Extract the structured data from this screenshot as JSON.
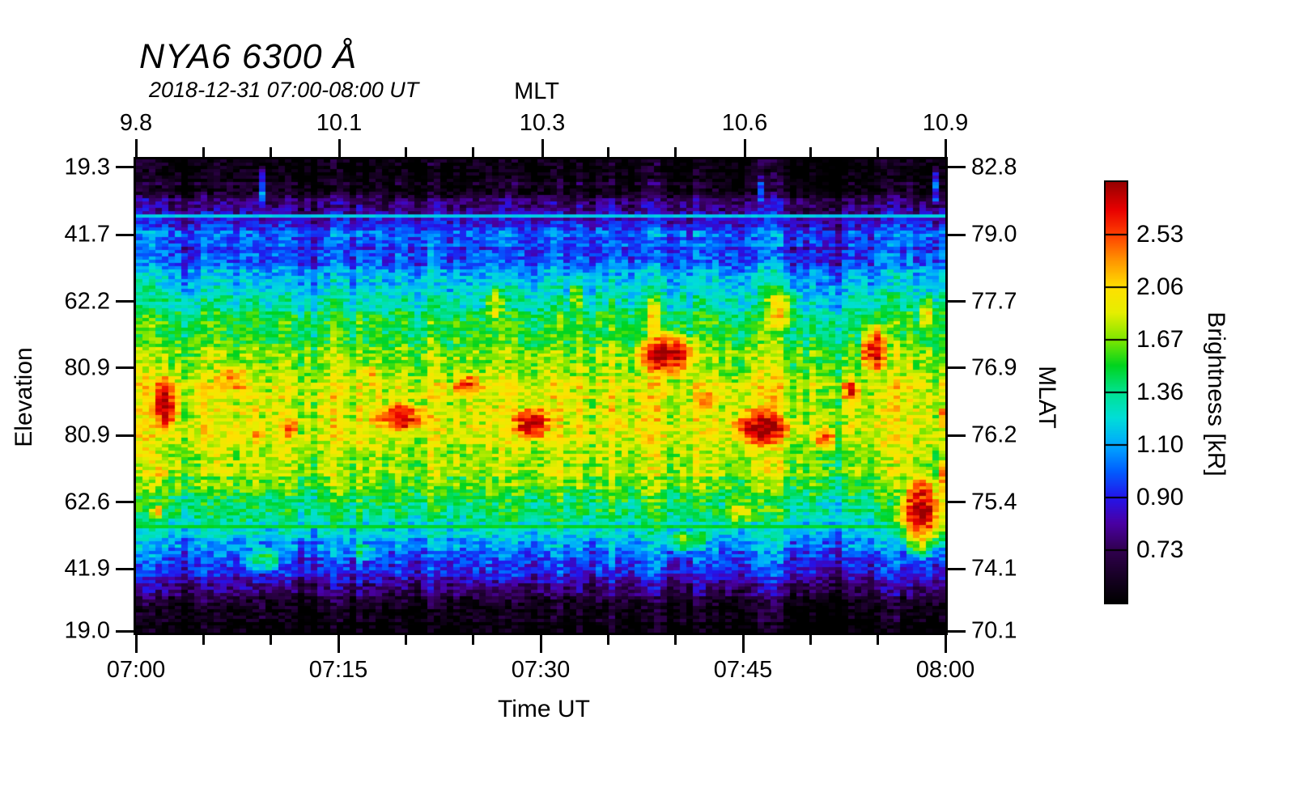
{
  "chart_data": {
    "type": "heatmap",
    "title": "NYA6 6300 Å",
    "subtitle": "2018-12-31 07:00-08:00 UT",
    "axes": {
      "top": {
        "label": "MLT",
        "ticks": [
          {
            "pos": 0.0,
            "label": "9.8"
          },
          {
            "pos": 0.251,
            "label": "10.1"
          },
          {
            "pos": 0.502,
            "label": "10.3"
          },
          {
            "pos": 0.752,
            "label": "10.6"
          },
          {
            "pos": 1.0,
            "label": "10.9"
          }
        ],
        "minor_divisions": 12
      },
      "bottom": {
        "label": "Time UT",
        "ticks": [
          {
            "pos": 0.0,
            "label": "07:00"
          },
          {
            "pos": 0.25,
            "label": "07:15"
          },
          {
            "pos": 0.5,
            "label": "07:30"
          },
          {
            "pos": 0.75,
            "label": "07:45"
          },
          {
            "pos": 1.0,
            "label": "08:00"
          }
        ],
        "minor_divisions": 12
      },
      "left": {
        "label": "Elevation",
        "ticks": [
          {
            "pos": 0.017,
            "label": "19.3"
          },
          {
            "pos": 0.159,
            "label": "41.7"
          },
          {
            "pos": 0.3,
            "label": "62.2"
          },
          {
            "pos": 0.441,
            "label": "80.9"
          },
          {
            "pos": 0.583,
            "label": "80.9"
          },
          {
            "pos": 0.724,
            "label": "62.6"
          },
          {
            "pos": 0.865,
            "label": "41.9"
          },
          {
            "pos": 0.997,
            "label": "19.0"
          }
        ]
      },
      "right": {
        "label": "MLAT",
        "ticks": [
          {
            "pos": 0.017,
            "label": "82.8"
          },
          {
            "pos": 0.159,
            "label": "79.0"
          },
          {
            "pos": 0.3,
            "label": "77.7"
          },
          {
            "pos": 0.441,
            "label": "76.9"
          },
          {
            "pos": 0.583,
            "label": "76.2"
          },
          {
            "pos": 0.724,
            "label": "75.4"
          },
          {
            "pos": 0.865,
            "label": "74.1"
          },
          {
            "pos": 0.997,
            "label": "70.1"
          }
        ]
      }
    },
    "colorbar": {
      "label": "Brightness [kR]",
      "segments": 8,
      "scale": "log",
      "vmin": 0.594,
      "vmax": 3.11,
      "boundary_labels": [
        "2.53",
        "2.06",
        "1.67",
        "1.36",
        "1.10",
        "0.90",
        "0.73"
      ]
    },
    "colormap": [
      [
        0.0,
        "#000000"
      ],
      [
        0.055,
        "#140020"
      ],
      [
        0.125,
        "#30004e"
      ],
      [
        0.19,
        "#4a00a4"
      ],
      [
        0.25,
        "#2414ea"
      ],
      [
        0.315,
        "#0060ff"
      ],
      [
        0.375,
        "#00a8ff"
      ],
      [
        0.44,
        "#00ded8"
      ],
      [
        0.5,
        "#00e292"
      ],
      [
        0.565,
        "#00d41e"
      ],
      [
        0.625,
        "#7ce600"
      ],
      [
        0.69,
        "#e6ee00"
      ],
      [
        0.75,
        "#ffe000"
      ],
      [
        0.815,
        "#ff9400"
      ],
      [
        0.875,
        "#ff4000"
      ],
      [
        0.935,
        "#e80000"
      ],
      [
        1.0,
        "#970000"
      ]
    ],
    "heatmap": {
      "cols": 40,
      "rows": 24,
      "base_profile": [
        0.62,
        0.66,
        0.82,
        1.0,
        0.97,
        1.08,
        1.22,
        1.38,
        1.52,
        1.66,
        1.8,
        1.88,
        1.9,
        1.86,
        1.82,
        1.76,
        1.62,
        1.45,
        1.3,
        1.12,
        0.95,
        0.8,
        0.66,
        0.6
      ],
      "column_gain": [
        1.04,
        0.98,
        0.95,
        1.03,
        0.99,
        1.06,
        0.96,
        1.01,
        0.92,
        1.04,
        0.97,
        1.05,
        1.0,
        0.94,
        1.03,
        0.98,
        1.05,
        0.96,
        1.02,
        0.91,
        1.03,
        1.0,
        0.96,
        1.04,
        0.97,
        1.05,
        0.93,
        1.01,
        1.04,
        0.97,
        1.02,
        1.05,
        0.9,
        0.92,
        0.88,
        0.96,
        0.98,
        1.04,
        0.94,
        1.0
      ],
      "features": [
        {
          "c": 0.8,
          "r": 11.8,
          "rc": 0.95,
          "rr": 2.0,
          "a": 2.95
        },
        {
          "c": 0.5,
          "r": 15.4,
          "rc": 0.6,
          "rr": 0.8,
          "a": 2.15
        },
        {
          "c": 0.4,
          "r": 17.3,
          "rc": 0.5,
          "rr": 0.7,
          "a": 2.05
        },
        {
          "c": 4.2,
          "r": 10.6,
          "rc": 1.8,
          "rr": 1.5,
          "a": 2.35
        },
        {
          "c": 5.3,
          "r": 13.5,
          "rc": 0.8,
          "rr": 1.1,
          "a": 2.25
        },
        {
          "c": 7.0,
          "r": 13.0,
          "rc": 0.7,
          "rr": 1.2,
          "a": 2.5
        },
        {
          "c": 12.4,
          "r": 12.5,
          "rc": 2.5,
          "rr": 1.2,
          "a": 2.78
        },
        {
          "c": 11.0,
          "r": 10.4,
          "rc": 0.8,
          "rr": 1.0,
          "a": 2.4
        },
        {
          "c": 15.8,
          "r": 10.9,
          "rc": 1.3,
          "rr": 1.1,
          "a": 2.65
        },
        {
          "c": 18.9,
          "r": 12.8,
          "rc": 1.5,
          "rr": 1.2,
          "a": 2.85
        },
        {
          "c": 23.2,
          "r": 12.7,
          "rc": 0.5,
          "rr": 0.7,
          "a": 2.45
        },
        {
          "c": 25.6,
          "r": 9.4,
          "rc": 2.0,
          "rr": 1.6,
          "a": 2.95
        },
        {
          "c": 27.6,
          "r": 11.6,
          "rc": 0.9,
          "rr": 0.9,
          "a": 2.5
        },
        {
          "c": 30.2,
          "r": 13.0,
          "rc": 2.1,
          "rr": 1.4,
          "a": 3.0
        },
        {
          "c": 33.4,
          "r": 13.6,
          "rc": 0.9,
          "rr": 1.0,
          "a": 2.5
        },
        {
          "c": 34.7,
          "r": 11.2,
          "rc": 0.8,
          "rr": 1.1,
          "a": 2.55
        },
        {
          "c": 35.8,
          "r": 9.2,
          "rc": 0.9,
          "rr": 1.8,
          "a": 2.9
        },
        {
          "c": 38.2,
          "r": 17.2,
          "rc": 1.5,
          "rr": 2.3,
          "a": 2.85
        },
        {
          "c": 39.6,
          "r": 15.6,
          "rc": 0.8,
          "rr": 1.6,
          "a": 2.8
        },
        {
          "c": 39.4,
          "r": 12.4,
          "rc": 0.7,
          "rr": 0.9,
          "a": 2.55
        },
        {
          "c": 17.1,
          "r": 6.9,
          "rc": 0.8,
          "rr": 1.7,
          "a": 1.8
        },
        {
          "c": 21.0,
          "r": 6.6,
          "rc": 0.6,
          "rr": 1.7,
          "a": 1.85
        },
        {
          "c": 24.9,
          "r": 7.6,
          "rc": 0.55,
          "rr": 2.0,
          "a": 2.1
        },
        {
          "c": 31.1,
          "r": 7.2,
          "rc": 1.3,
          "rr": 2.2,
          "a": 1.95
        },
        {
          "c": 38.5,
          "r": 7.4,
          "rc": 0.9,
          "rr": 1.6,
          "a": 1.85
        },
        {
          "c": 5.6,
          "r": 1.0,
          "rc": 0.28,
          "rr": 1.6,
          "a": 1.12
        },
        {
          "c": 30.3,
          "r": 1.2,
          "rc": 0.3,
          "rr": 1.8,
          "a": 0.95
        },
        {
          "c": 38.9,
          "r": 0.9,
          "rc": 0.28,
          "rr": 1.5,
          "a": 1.1
        },
        {
          "c": 26.6,
          "r": 18.7,
          "rc": 2.0,
          "rr": 1.1,
          "a": 1.55
        },
        {
          "c": 29.2,
          "r": 17.2,
          "rc": 1.4,
          "rr": 1.5,
          "a": 1.9
        },
        {
          "c": 5.6,
          "r": 19.7,
          "rc": 1.5,
          "rr": 1.0,
          "a": 1.5
        },
        {
          "c": 10.6,
          "r": 19.3,
          "rc": 1.0,
          "rr": 0.9,
          "a": 1.45
        },
        {
          "c": 38.9,
          "r": 21.0,
          "rc": 0.25,
          "rr": 2.5,
          "a": 0.85
        },
        {
          "c": 5.6,
          "r": 22.0,
          "rc": 0.3,
          "rr": 2.0,
          "a": 0.75
        }
      ],
      "scan_lines": [
        {
          "pos": 0.116,
          "value": 1.18
        },
        {
          "pos": 0.771,
          "value": 1.5
        }
      ],
      "noise": {
        "cell": 0.12,
        "col": 0.07,
        "row": 0.05,
        "seed": 77
      }
    }
  }
}
